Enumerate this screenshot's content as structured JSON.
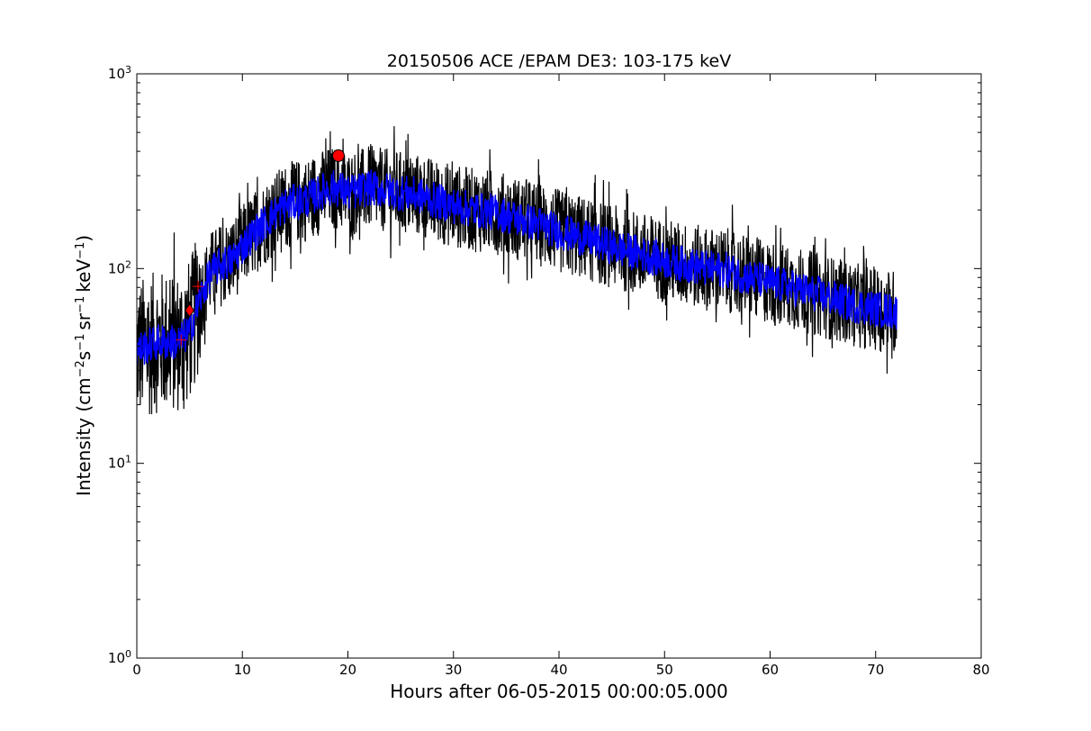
{
  "chart_data": {
    "type": "line",
    "title": "20150506 ACE /EPAM DE3: 103-175 keV",
    "xlabel": "Hours after 06-05-2015 00:00:05.000",
    "ylabel": {
      "text": "Intensity (cm",
      "e1": "−2",
      "t2": "s",
      "e2": "−1",
      "t3": "sr",
      "e3": "−1",
      "t4": "keV",
      "e4": "−1",
      "t5": ")"
    },
    "xlim": [
      0,
      80
    ],
    "ylim": [
      1,
      1000
    ],
    "yscale": "log",
    "grid": false,
    "x_ticks": [
      "0",
      "10",
      "20",
      "30",
      "40",
      "50",
      "60",
      "70",
      "80"
    ],
    "y_ticks": [
      {
        "base": "10",
        "exp": "0"
      },
      {
        "base": "10",
        "exp": "1"
      },
      {
        "base": "10",
        "exp": "2"
      },
      {
        "base": "10",
        "exp": "3"
      }
    ],
    "colors": {
      "raw": "#000000",
      "smoothed": "#0000ff",
      "marker": "#ff0000"
    },
    "series": [
      {
        "style": "raw-noisy",
        "x": [
          0,
          1,
          2,
          3,
          4,
          5,
          6,
          7,
          8,
          9,
          10,
          11,
          12,
          13,
          14,
          15,
          16,
          17,
          18,
          19,
          20,
          21,
          22,
          23,
          24,
          25,
          26,
          27,
          28,
          30,
          32,
          34,
          36,
          38,
          40,
          42,
          44,
          46,
          48,
          50,
          52,
          54,
          56,
          58,
          60,
          62,
          64,
          66,
          68,
          70,
          72
        ],
        "values": [
          38,
          40,
          42,
          42,
          42,
          48,
          70,
          95,
          105,
          110,
          130,
          150,
          170,
          190,
          210,
          220,
          225,
          240,
          255,
          260,
          245,
          250,
          260,
          255,
          250,
          245,
          240,
          235,
          225,
          210,
          200,
          195,
          180,
          170,
          155,
          145,
          135,
          125,
          118,
          110,
          105,
          100,
          98,
          90,
          85,
          80,
          75,
          70,
          65,
          62,
          60
        ]
      },
      {
        "style": "smoothed",
        "x": [
          0,
          1,
          2,
          3,
          4,
          5,
          6,
          7,
          8,
          9,
          10,
          11,
          12,
          13,
          14,
          15,
          16,
          17,
          18,
          19,
          20,
          21,
          22,
          23,
          24,
          25,
          26,
          27,
          28,
          30,
          32,
          34,
          36,
          38,
          40,
          42,
          44,
          46,
          48,
          50,
          52,
          54,
          56,
          58,
          60,
          62,
          64,
          66,
          68,
          70,
          72
        ],
        "values": [
          38,
          40,
          42,
          42,
          42,
          48,
          70,
          95,
          105,
          110,
          130,
          150,
          170,
          190,
          210,
          220,
          225,
          240,
          255,
          260,
          245,
          250,
          260,
          255,
          250,
          245,
          240,
          235,
          225,
          210,
          200,
          195,
          180,
          170,
          155,
          145,
          135,
          125,
          118,
          110,
          105,
          100,
          98,
          90,
          85,
          80,
          75,
          70,
          65,
          62,
          60
        ]
      }
    ],
    "markers": [
      {
        "shape": "circle",
        "x": 19.1,
        "y": 380
      },
      {
        "shape": "diamond",
        "x": 5.0,
        "y": 61
      },
      {
        "shape": "plus",
        "x": 4.2,
        "y": 43
      },
      {
        "shape": "plus",
        "x": 5.8,
        "y": 81
      }
    ]
  }
}
